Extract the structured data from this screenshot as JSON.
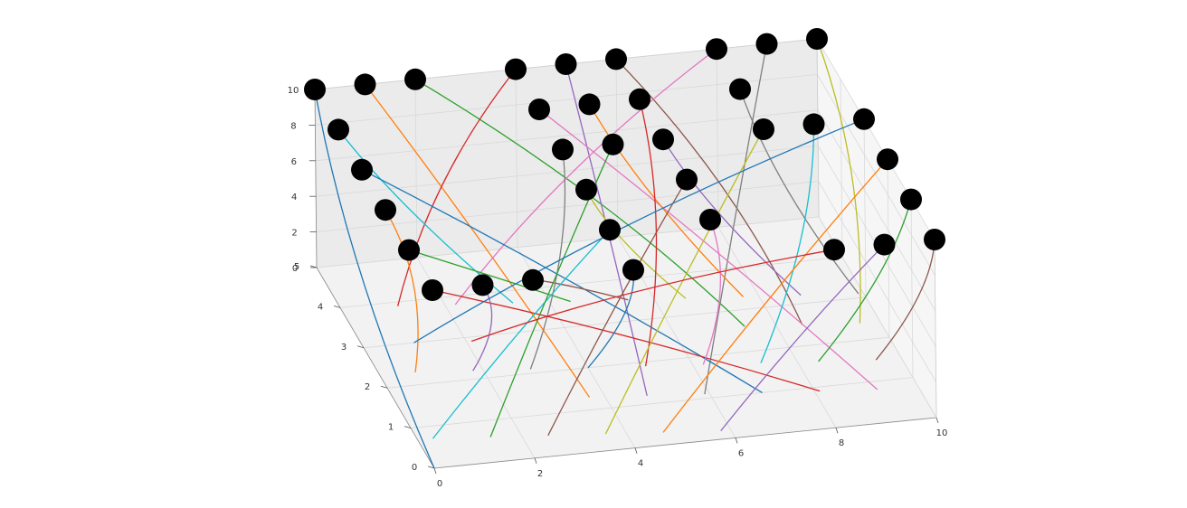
{
  "chart_data": {
    "type": "scatter3d",
    "title": "",
    "xlabel": "",
    "ylabel": "",
    "zlabel": "",
    "xlim": [
      0,
      10
    ],
    "ylim": [
      0,
      5
    ],
    "zlim": [
      0,
      10
    ],
    "grid": true,
    "x_ticks": [
      "0",
      "2",
      "4",
      "6",
      "8",
      "10"
    ],
    "y_ticks": [
      "0",
      "1",
      "2",
      "3",
      "4",
      "5"
    ],
    "z_ticks": [
      "0",
      "2",
      "4",
      "6",
      "8",
      "10"
    ],
    "marker_color": "#000000",
    "line_colors": [
      "#1f77b4",
      "#ff7f0e",
      "#2ca02c",
      "#d62728",
      "#9467bd",
      "#8c564b",
      "#e377c2",
      "#7f7f7f",
      "#bcbd22",
      "#17becf"
    ],
    "points": [
      [
        0,
        5,
        10
      ],
      [
        1,
        5,
        10
      ],
      [
        2,
        5,
        10
      ],
      [
        4,
        5,
        10
      ],
      [
        5,
        5,
        10
      ],
      [
        6,
        5,
        10
      ],
      [
        8,
        5,
        10
      ],
      [
        9,
        5,
        10
      ],
      [
        10,
        5,
        10
      ],
      [
        0,
        4,
        10
      ],
      [
        0,
        3,
        10
      ],
      [
        0,
        2,
        10
      ],
      [
        0,
        1,
        10
      ],
      [
        0,
        0,
        10
      ],
      [
        1,
        0,
        10
      ],
      [
        2,
        0,
        10
      ],
      [
        4,
        4,
        10
      ],
      [
        4,
        3,
        10
      ],
      [
        4,
        2,
        10
      ],
      [
        4,
        1,
        10
      ],
      [
        4,
        0,
        10
      ],
      [
        5,
        4,
        10
      ],
      [
        5,
        3,
        10
      ],
      [
        6,
        4,
        10
      ],
      [
        6,
        3,
        10
      ],
      [
        6,
        2,
        10
      ],
      [
        6,
        1,
        10
      ],
      [
        8,
        4,
        10
      ],
      [
        8,
        3,
        10
      ],
      [
        9,
        3,
        10
      ],
      [
        10,
        3,
        10
      ],
      [
        10,
        2,
        10
      ],
      [
        10,
        1,
        10
      ],
      [
        8,
        0,
        10
      ],
      [
        9,
        0,
        10
      ],
      [
        10,
        0,
        10
      ]
    ]
  }
}
